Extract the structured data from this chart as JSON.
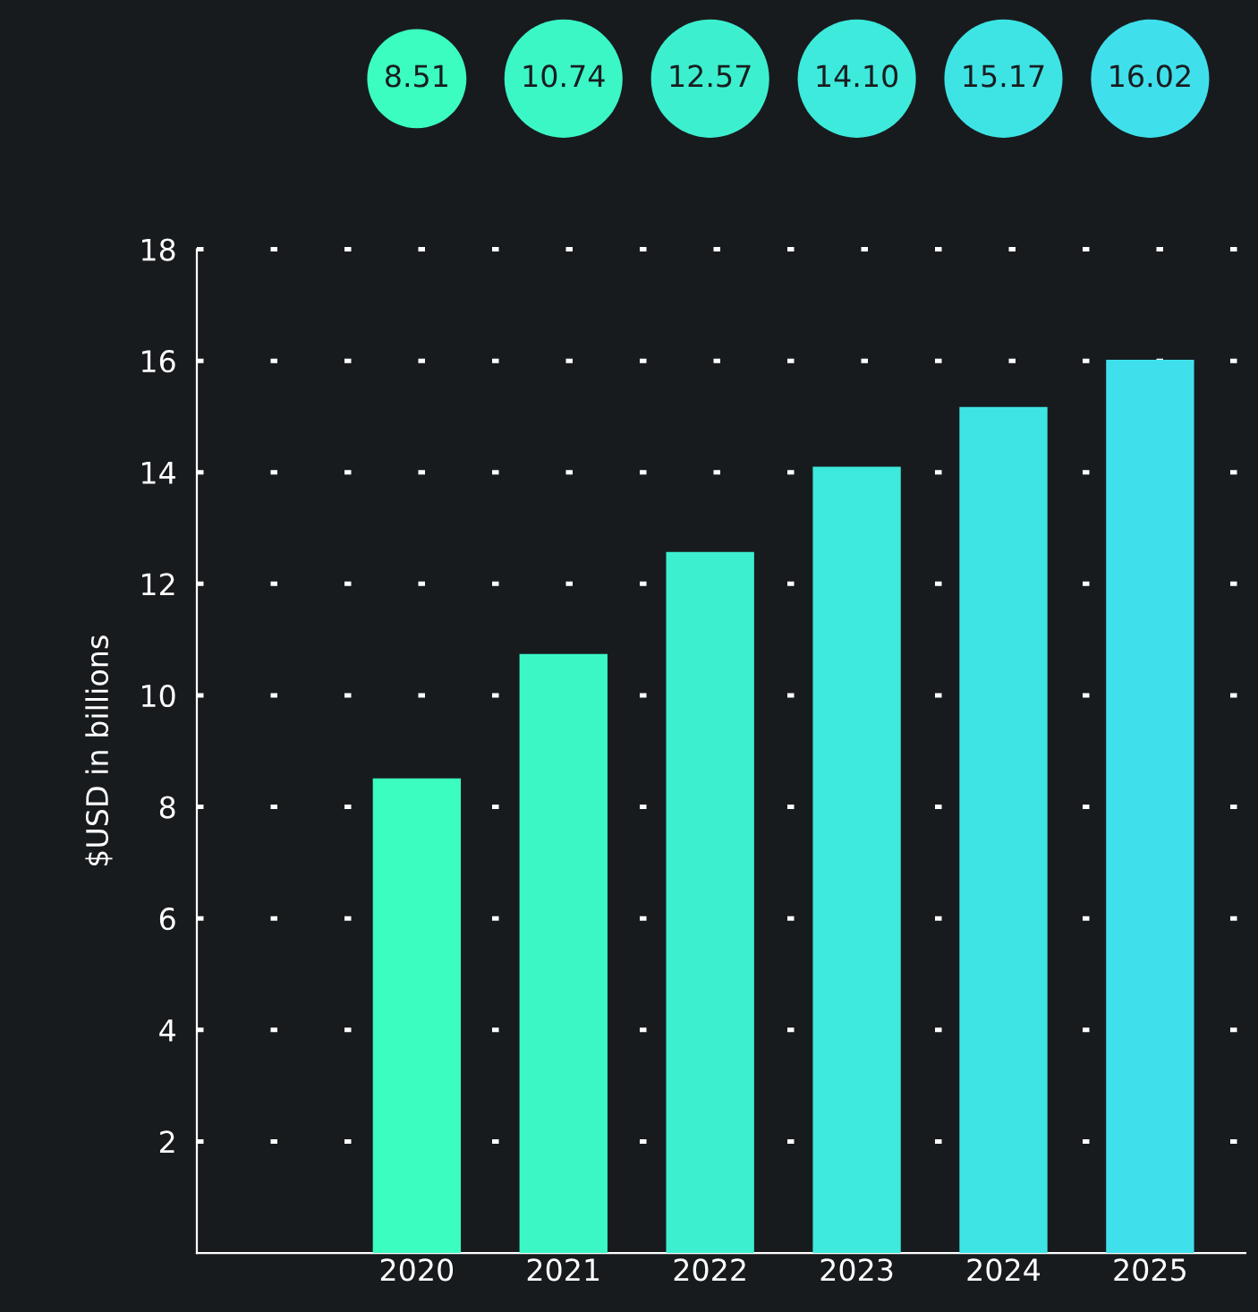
{
  "chart_data": {
    "type": "bar",
    "ylabel": "$USD in billions",
    "categories": [
      "2020",
      "2021",
      "2022",
      "2023",
      "2024",
      "2025"
    ],
    "values": [
      8.51,
      10.74,
      12.57,
      14.1,
      15.17,
      16.02
    ],
    "colors": [
      "#3bfdc0",
      "#3bf7c6",
      "#3cf0cf",
      "#3deadb",
      "#3ee4e4",
      "#3fe0ec"
    ],
    "annotations": [
      "8.51",
      "10.74",
      "12.57",
      "14.10",
      "15.17",
      "16.02"
    ],
    "ylim": [
      0,
      18
    ],
    "yticks": [
      2,
      4,
      6,
      8,
      10,
      12,
      14,
      16,
      18
    ],
    "grid": "y"
  }
}
